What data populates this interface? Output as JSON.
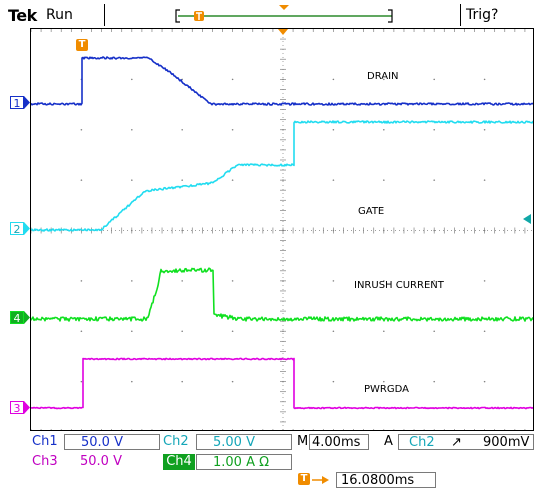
{
  "header": {
    "brand": "Tek",
    "run_state": "Run",
    "trigger_status": "Trig?"
  },
  "traces": [
    {
      "id": "1",
      "label": "DRAIN",
      "color": "#1630c8"
    },
    {
      "id": "2",
      "label": "GATE",
      "color": "#22dcf0"
    },
    {
      "id": "4",
      "label": "INRUSH CURRENT",
      "color": "#10e020"
    },
    {
      "id": "3",
      "label": "PWRGDA",
      "color": "#e000e0"
    }
  ],
  "markers": {
    "trigger_marker": "T",
    "trigger_offset_marker": "T"
  },
  "status": {
    "ch1": {
      "name": "Ch1",
      "value": "50.0 V"
    },
    "ch2": {
      "name": "Ch2",
      "value": "5.00 V"
    },
    "ch3": {
      "name": "Ch3",
      "value": "50.0 V"
    },
    "ch4": {
      "name": "Ch4",
      "value": "1.00 A Ω"
    },
    "timebase": {
      "prefix": "M",
      "value": "4.00ms"
    },
    "trigger": {
      "mode": "A",
      "source": "Ch2",
      "slope": "↗",
      "level": "900mV"
    },
    "trigger_position": {
      "value": "16.0800ms"
    }
  },
  "colors": {
    "grid": "#808080",
    "ch1": "#1630c8",
    "ch2": "#22dcf0",
    "ch3": "#e000e0",
    "ch4": "#10e020",
    "trigger_orange": "#f08c00",
    "record_bar": "#2b8a2b"
  }
}
